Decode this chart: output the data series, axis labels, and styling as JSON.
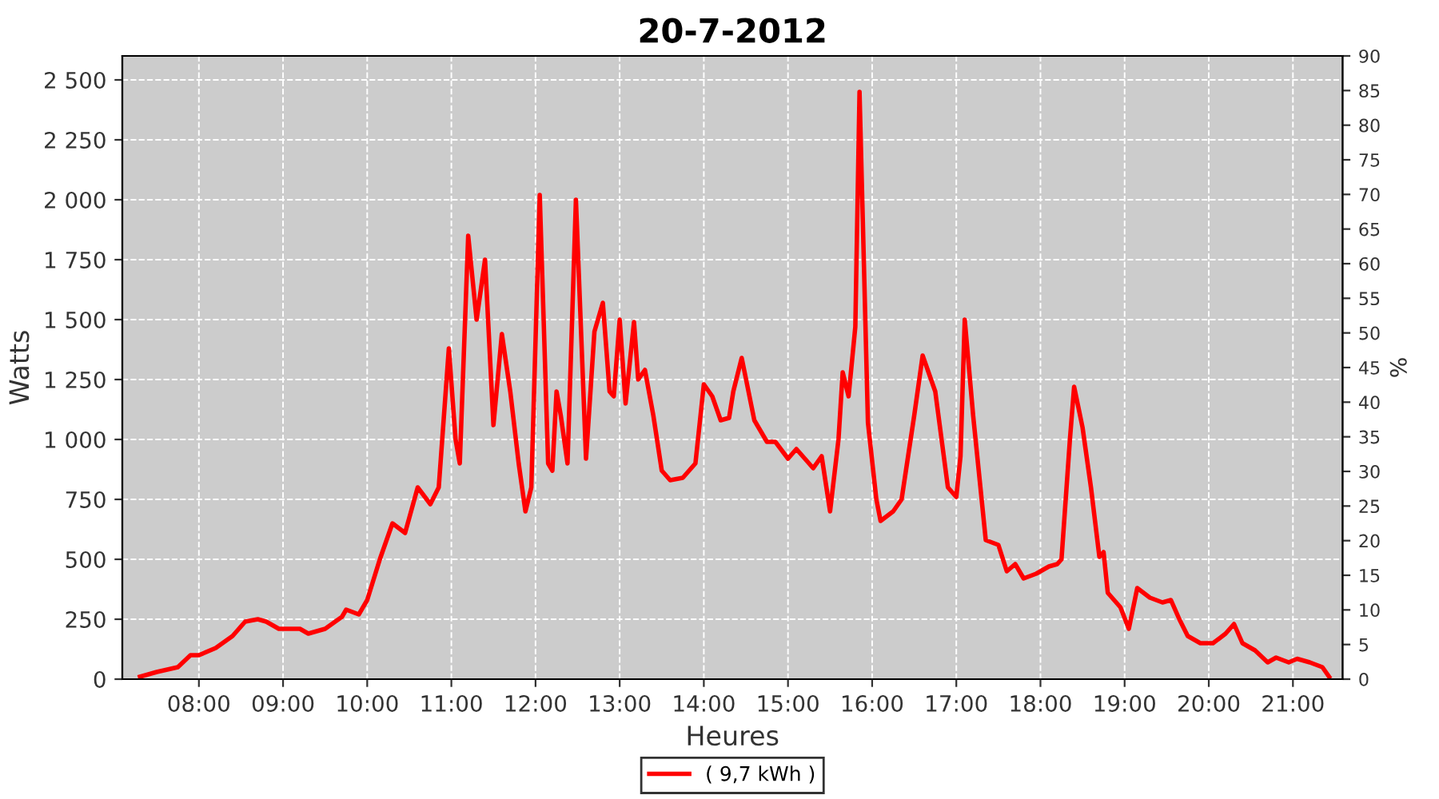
{
  "chart_data": {
    "type": "line",
    "title": "20-7-2012",
    "xlabel": "Heures",
    "ylabel": "Watts",
    "y2label": "%",
    "xlim": [
      7.09,
      21.59
    ],
    "xticks": [
      {
        "value": 8,
        "label": "08:00"
      },
      {
        "value": 9,
        "label": "09:00"
      },
      {
        "value": 10,
        "label": "10:00"
      },
      {
        "value": 11,
        "label": "11:00"
      },
      {
        "value": 12,
        "label": "12:00"
      },
      {
        "value": 13,
        "label": "13:00"
      },
      {
        "value": 14,
        "label": "14:00"
      },
      {
        "value": 15,
        "label": "15:00"
      },
      {
        "value": 16,
        "label": "16:00"
      },
      {
        "value": 17,
        "label": "17:00"
      },
      {
        "value": 18,
        "label": "18:00"
      },
      {
        "value": 19,
        "label": "19:00"
      },
      {
        "value": 20,
        "label": "20:00"
      },
      {
        "value": 21,
        "label": "21:00"
      }
    ],
    "ylim": [
      0,
      2600
    ],
    "yticks": [
      0,
      {
        "value": 250,
        "label": "250"
      },
      {
        "value": 500,
        "label": "500"
      },
      {
        "value": 750,
        "label": "750"
      },
      {
        "value": 1000,
        "label": "1 000"
      },
      {
        "value": 1250,
        "label": "1 250"
      },
      {
        "value": 1500,
        "label": "1 500"
      },
      {
        "value": 1750,
        "label": "1 750"
      },
      {
        "value": 2000,
        "label": "2 000"
      },
      {
        "value": 2250,
        "label": "2 250"
      },
      {
        "value": 2500,
        "label": "2 500"
      }
    ],
    "y2lim": [
      0,
      90
    ],
    "y2ticks": [
      0,
      5,
      10,
      15,
      20,
      25,
      30,
      35,
      40,
      45,
      50,
      55,
      60,
      65,
      70,
      75,
      80,
      85,
      90
    ],
    "grid": true,
    "legend": "bottom",
    "marker": "none",
    "line_style": "solid",
    "series": [
      {
        "name": "( 9,7 kWh )",
        "color": "#ff0000",
        "x": [
          7.3,
          7.5,
          7.75,
          7.9,
          8.0,
          8.2,
          8.4,
          8.55,
          8.7,
          8.8,
          8.95,
          9.2,
          9.3,
          9.5,
          9.7,
          9.75,
          9.9,
          10.0,
          10.15,
          10.3,
          10.45,
          10.6,
          10.75,
          10.85,
          10.97,
          11.05,
          11.1,
          11.2,
          11.3,
          11.4,
          11.5,
          11.6,
          11.7,
          11.8,
          11.88,
          11.95,
          12.05,
          12.15,
          12.2,
          12.25,
          12.3,
          12.38,
          12.48,
          12.6,
          12.7,
          12.8,
          12.88,
          12.93,
          13.0,
          13.07,
          13.17,
          13.22,
          13.3,
          13.4,
          13.5,
          13.6,
          13.75,
          13.9,
          14.0,
          14.1,
          14.2,
          14.3,
          14.35,
          14.45,
          14.6,
          14.75,
          14.85,
          15.0,
          15.1,
          15.2,
          15.3,
          15.4,
          15.5,
          15.6,
          15.65,
          15.72,
          15.8,
          15.85,
          15.95,
          16.05,
          16.1,
          16.25,
          16.35,
          16.5,
          16.6,
          16.75,
          16.9,
          17.0,
          17.05,
          17.1,
          17.2,
          17.35,
          17.5,
          17.6,
          17.7,
          17.8,
          17.95,
          18.1,
          18.2,
          18.25,
          18.35,
          18.4,
          18.5,
          18.6,
          18.7,
          18.75,
          18.8,
          18.95,
          19.05,
          19.15,
          19.3,
          19.45,
          19.55,
          19.65,
          19.75,
          19.9,
          20.05,
          20.2,
          20.3,
          20.4,
          20.55,
          20.7,
          20.8,
          20.95,
          21.05,
          21.2,
          21.35,
          21.43
        ],
        "values": [
          10,
          30,
          50,
          100,
          100,
          130,
          180,
          240,
          250,
          240,
          210,
          210,
          190,
          210,
          260,
          290,
          270,
          330,
          500,
          650,
          610,
          800,
          730,
          800,
          1380,
          1000,
          900,
          1850,
          1500,
          1750,
          1060,
          1440,
          1200,
          900,
          700,
          800,
          2020,
          900,
          870,
          1200,
          1100,
          900,
          2000,
          920,
          1450,
          1570,
          1200,
          1180,
          1500,
          1150,
          1490,
          1250,
          1290,
          1100,
          870,
          830,
          840,
          900,
          1230,
          1180,
          1080,
          1090,
          1200,
          1340,
          1080,
          990,
          990,
          920,
          960,
          920,
          880,
          930,
          700,
          1000,
          1280,
          1180,
          1470,
          2450,
          1070,
          750,
          660,
          700,
          750,
          1100,
          1350,
          1200,
          800,
          760,
          930,
          1500,
          1100,
          580,
          560,
          450,
          480,
          420,
          440,
          470,
          480,
          500,
          1000,
          1220,
          1050,
          800,
          510,
          530,
          360,
          300,
          210,
          380,
          340,
          320,
          330,
          250,
          180,
          150,
          150,
          190,
          230,
          150,
          120,
          70,
          90,
          70,
          85,
          70,
          50,
          10
        ]
      }
    ]
  }
}
